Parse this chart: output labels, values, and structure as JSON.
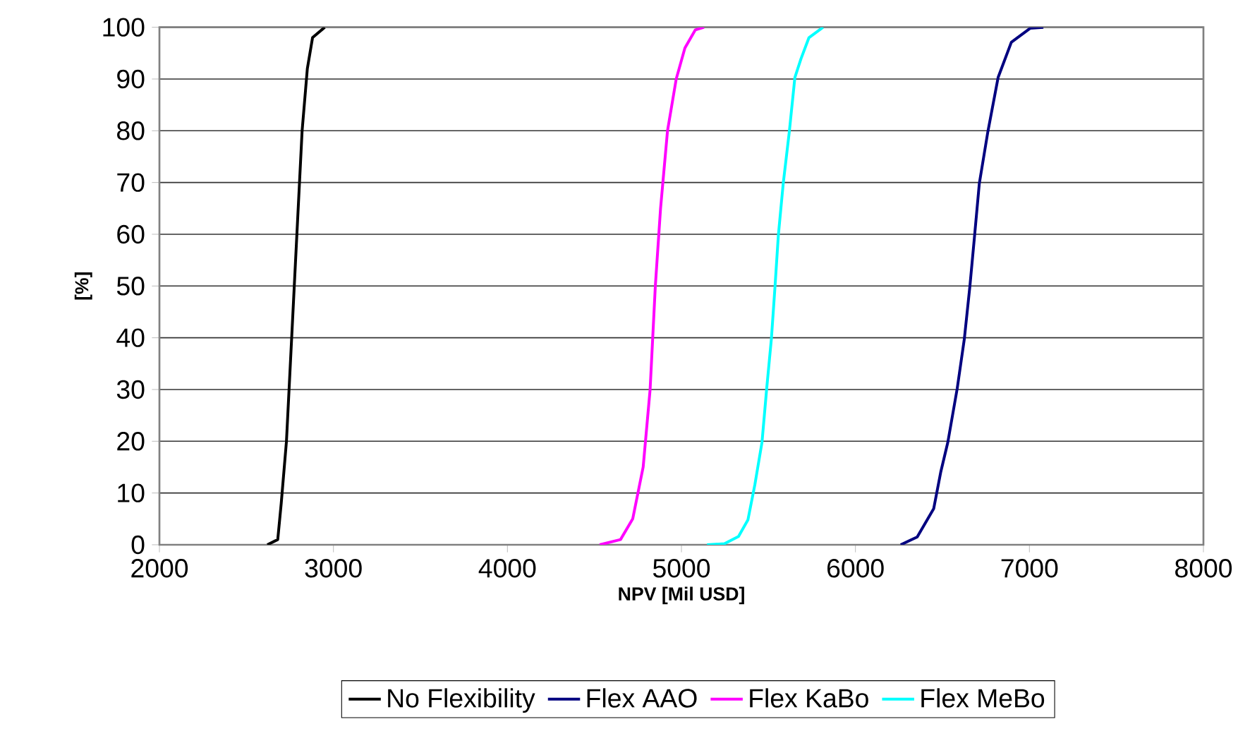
{
  "chart_data": {
    "type": "line",
    "xlabel": "NPV [Mil USD]",
    "ylabel": "[%]",
    "xlim": [
      2000,
      8000
    ],
    "ylim": [
      0,
      100
    ],
    "xticks": [
      2000,
      3000,
      4000,
      5000,
      6000,
      7000,
      8000
    ],
    "yticks": [
      0,
      10,
      20,
      30,
      40,
      50,
      60,
      70,
      80,
      90,
      100
    ],
    "grid": "y",
    "legend": "bottom",
    "marker": "none",
    "line_style": "solid",
    "series": [
      {
        "name": "No Flexibility",
        "color": "#000000",
        "x": [
          2620,
          2680,
          2700,
          2730,
          2760,
          2790,
          2820,
          2850,
          2880,
          2950
        ],
        "values": [
          0,
          1,
          8,
          20,
          40,
          60,
          80,
          92,
          98,
          100
        ]
      },
      {
        "name": "Flex AAO",
        "color": "#000080",
        "x": [
          6260,
          6355,
          6450,
          6490,
          6531,
          6585,
          6626,
          6658,
          6685,
          6712,
          6761,
          6820,
          6896,
          7004,
          7080
        ],
        "values": [
          0,
          1.5,
          7,
          14,
          19.8,
          30.2,
          39.8,
          50,
          59.8,
          69.8,
          79.8,
          90.3,
          97.1,
          99.8,
          100
        ]
      },
      {
        "name": "Flex KaBo",
        "color": "#ff00ff",
        "x": [
          4530,
          4650,
          4720,
          4780,
          4820,
          4850,
          4880,
          4920,
          4970,
          5020,
          5080,
          5130
        ],
        "values": [
          0,
          1,
          5,
          15,
          30,
          50,
          65,
          80,
          90,
          96,
          99.5,
          100
        ]
      },
      {
        "name": "Flex MeBo",
        "color": "#00ffff",
        "x": [
          5147,
          5247,
          5328,
          5382,
          5422,
          5463,
          5490,
          5517,
          5538,
          5557,
          5585,
          5620,
          5652,
          5687,
          5733,
          5814
        ],
        "values": [
          0,
          0.2,
          1.6,
          4.8,
          11.6,
          19.8,
          30.2,
          39.8,
          50,
          59.8,
          69.8,
          79.8,
          90.3,
          93.9,
          98,
          100
        ]
      }
    ]
  }
}
